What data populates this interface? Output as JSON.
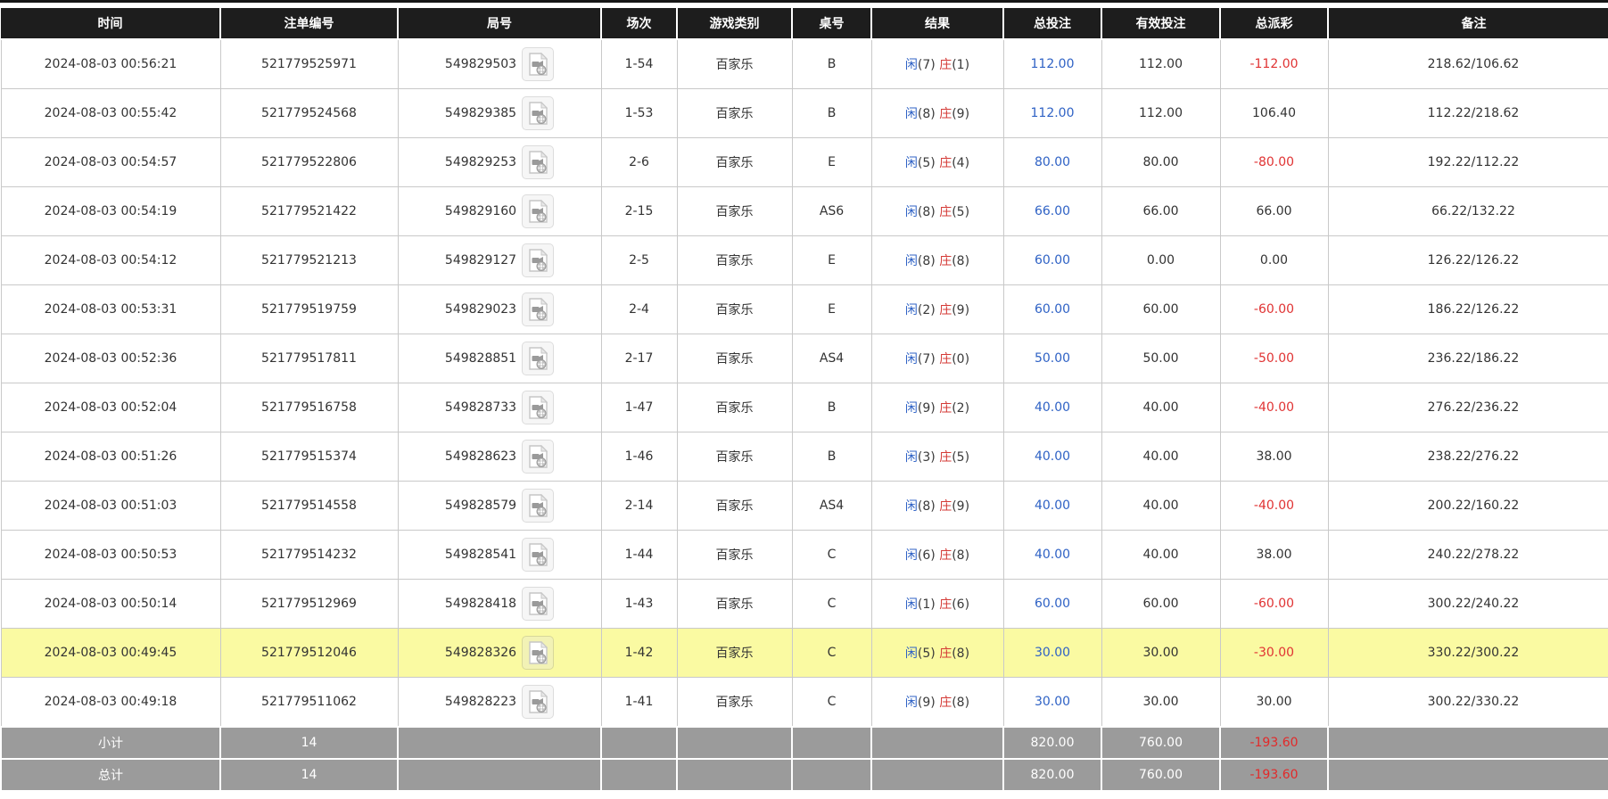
{
  "colors": {
    "header_bg": "#1d1d1d",
    "header_text": "#ffffff",
    "row_highlight": "#fafaa2",
    "summary_bg": "#9b9b9b",
    "bet_amount_blue": "#2f62c5",
    "player_blue": "#2f62c5",
    "banker_red": "#d43a36",
    "loss_red": "#e03333"
  },
  "table": {
    "columns": [
      {
        "label": "时间"
      },
      {
        "label": "注单编号"
      },
      {
        "label": "局号"
      },
      {
        "label": "场次"
      },
      {
        "label": "游戏类别"
      },
      {
        "label": "桌号"
      },
      {
        "label": "结果"
      },
      {
        "label": "总投注"
      },
      {
        "label": "有效投注"
      },
      {
        "label": "总派彩"
      },
      {
        "label": "备注"
      }
    ],
    "result_labels": {
      "player": "闲",
      "banker": "庄"
    },
    "video_icon": "video-replay-icon",
    "rows": [
      {
        "time": "2024-08-03 00:56:21",
        "bet_no": "521779525971",
        "round_no": "549829503",
        "session": "1-54",
        "game": "百家乐",
        "table_no": "B",
        "player_score": "(7)",
        "banker_score": "(1)",
        "total_bet": "112.00",
        "valid_bet": "112.00",
        "payout": "-112.00",
        "remark": "218.62/106.62",
        "highlighted": false
      },
      {
        "time": "2024-08-03 00:55:42",
        "bet_no": "521779524568",
        "round_no": "549829385",
        "session": "1-53",
        "game": "百家乐",
        "table_no": "B",
        "player_score": "(8)",
        "banker_score": "(9)",
        "total_bet": "112.00",
        "valid_bet": "112.00",
        "payout": "106.40",
        "remark": "112.22/218.62",
        "highlighted": false
      },
      {
        "time": "2024-08-03 00:54:57",
        "bet_no": "521779522806",
        "round_no": "549829253",
        "session": "2-6",
        "game": "百家乐",
        "table_no": "E",
        "player_score": "(5)",
        "banker_score": "(4)",
        "total_bet": "80.00",
        "valid_bet": "80.00",
        "payout": "-80.00",
        "remark": "192.22/112.22",
        "highlighted": false
      },
      {
        "time": "2024-08-03 00:54:19",
        "bet_no": "521779521422",
        "round_no": "549829160",
        "session": "2-15",
        "game": "百家乐",
        "table_no": "AS6",
        "player_score": "(8)",
        "banker_score": "(5)",
        "total_bet": "66.00",
        "valid_bet": "66.00",
        "payout": "66.00",
        "remark": "66.22/132.22",
        "highlighted": false
      },
      {
        "time": "2024-08-03 00:54:12",
        "bet_no": "521779521213",
        "round_no": "549829127",
        "session": "2-5",
        "game": "百家乐",
        "table_no": "E",
        "player_score": "(8)",
        "banker_score": "(8)",
        "total_bet": "60.00",
        "valid_bet": "0.00",
        "payout": "0.00",
        "remark": "126.22/126.22",
        "highlighted": false
      },
      {
        "time": "2024-08-03 00:53:31",
        "bet_no": "521779519759",
        "round_no": "549829023",
        "session": "2-4",
        "game": "百家乐",
        "table_no": "E",
        "player_score": "(2)",
        "banker_score": "(9)",
        "total_bet": "60.00",
        "valid_bet": "60.00",
        "payout": "-60.00",
        "remark": "186.22/126.22",
        "highlighted": false
      },
      {
        "time": "2024-08-03 00:52:36",
        "bet_no": "521779517811",
        "round_no": "549828851",
        "session": "2-17",
        "game": "百家乐",
        "table_no": "AS4",
        "player_score": "(7)",
        "banker_score": "(0)",
        "total_bet": "50.00",
        "valid_bet": "50.00",
        "payout": "-50.00",
        "remark": "236.22/186.22",
        "highlighted": false
      },
      {
        "time": "2024-08-03 00:52:04",
        "bet_no": "521779516758",
        "round_no": "549828733",
        "session": "1-47",
        "game": "百家乐",
        "table_no": "B",
        "player_score": "(9)",
        "banker_score": "(2)",
        "total_bet": "40.00",
        "valid_bet": "40.00",
        "payout": "-40.00",
        "remark": "276.22/236.22",
        "highlighted": false
      },
      {
        "time": "2024-08-03 00:51:26",
        "bet_no": "521779515374",
        "round_no": "549828623",
        "session": "1-46",
        "game": "百家乐",
        "table_no": "B",
        "player_score": "(3)",
        "banker_score": "(5)",
        "total_bet": "40.00",
        "valid_bet": "40.00",
        "payout": "38.00",
        "remark": "238.22/276.22",
        "highlighted": false
      },
      {
        "time": "2024-08-03 00:51:03",
        "bet_no": "521779514558",
        "round_no": "549828579",
        "session": "2-14",
        "game": "百家乐",
        "table_no": "AS4",
        "player_score": "(8)",
        "banker_score": "(9)",
        "total_bet": "40.00",
        "valid_bet": "40.00",
        "payout": "-40.00",
        "remark": "200.22/160.22",
        "highlighted": false
      },
      {
        "time": "2024-08-03 00:50:53",
        "bet_no": "521779514232",
        "round_no": "549828541",
        "session": "1-44",
        "game": "百家乐",
        "table_no": "C",
        "player_score": "(6)",
        "banker_score": "(8)",
        "total_bet": "40.00",
        "valid_bet": "40.00",
        "payout": "38.00",
        "remark": "240.22/278.22",
        "highlighted": false
      },
      {
        "time": "2024-08-03 00:50:14",
        "bet_no": "521779512969",
        "round_no": "549828418",
        "session": "1-43",
        "game": "百家乐",
        "table_no": "C",
        "player_score": "(1)",
        "banker_score": "(6)",
        "total_bet": "60.00",
        "valid_bet": "60.00",
        "payout": "-60.00",
        "remark": "300.22/240.22",
        "highlighted": false
      },
      {
        "time": "2024-08-03 00:49:45",
        "bet_no": "521779512046",
        "round_no": "549828326",
        "session": "1-42",
        "game": "百家乐",
        "table_no": "C",
        "player_score": "(5)",
        "banker_score": "(8)",
        "total_bet": "30.00",
        "valid_bet": "30.00",
        "payout": "-30.00",
        "remark": "330.22/300.22",
        "highlighted": true
      },
      {
        "time": "2024-08-03 00:49:18",
        "bet_no": "521779511062",
        "round_no": "549828223",
        "session": "1-41",
        "game": "百家乐",
        "table_no": "C",
        "player_score": "(9)",
        "banker_score": "(8)",
        "total_bet": "30.00",
        "valid_bet": "30.00",
        "payout": "30.00",
        "remark": "300.22/330.22",
        "highlighted": false
      }
    ],
    "summary_rows": [
      {
        "label": "小计",
        "count": "14",
        "total_bet": "820.00",
        "valid_bet": "760.00",
        "payout": "-193.60"
      },
      {
        "label": "总计",
        "count": "14",
        "total_bet": "820.00",
        "valid_bet": "760.00",
        "payout": "-193.60"
      }
    ]
  }
}
